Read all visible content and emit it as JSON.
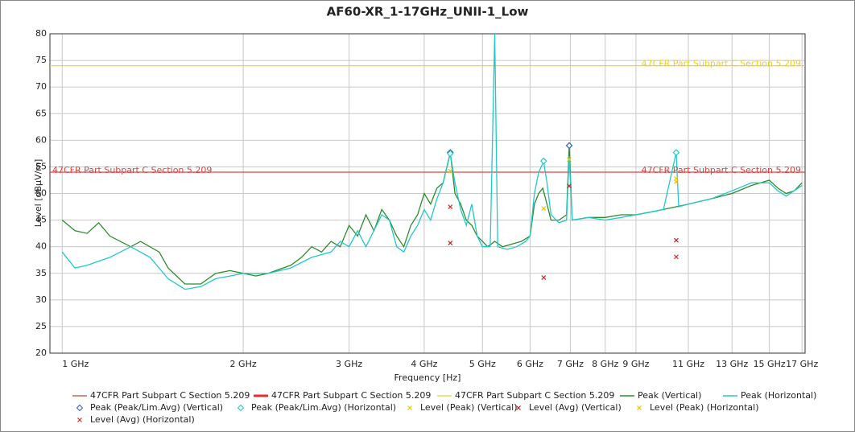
{
  "chart_data": {
    "type": "line",
    "title": "AF60-XR_1-17GHz_UNII-1_Low",
    "xlabel": "Frequency [Hz]",
    "ylabel": "Level [dBµV/m]",
    "xscale": "log",
    "grid": true,
    "xlim": [
      954000000.0,
      17200000000.0
    ],
    "xticks": [
      {
        "value": 1000000000.0,
        "label": "1 GHz"
      },
      {
        "value": 2000000000.0,
        "label": "2 GHz"
      },
      {
        "value": 3000000000.0,
        "label": "3 GHz"
      },
      {
        "value": 4000000000.0,
        "label": "4 GHz"
      },
      {
        "value": 5000000000.0,
        "label": "5 GHz"
      },
      {
        "value": 6000000000.0,
        "label": "6 GHz"
      },
      {
        "value": 7000000000.0,
        "label": "7 GHz"
      },
      {
        "value": 8000000000.0,
        "label": "8 GHz"
      },
      {
        "value": 9000000000.0,
        "label": "9 GHz"
      },
      {
        "value": 11000000000.0,
        "label": "11 GHz"
      },
      {
        "value": 13000000000.0,
        "label": "13 GHz"
      },
      {
        "value": 15000000000.0,
        "label": "15 GHz"
      },
      {
        "value": 17000000000.0,
        "label": "17 GHz"
      }
    ],
    "ylim": [
      20,
      80
    ],
    "yticks": [
      20,
      25,
      30,
      35,
      40,
      45,
      50,
      55,
      60,
      65,
      70,
      75,
      80
    ],
    "limits": [
      {
        "name": "47CFR Part Subpart C Section 5.209",
        "color": "#b04a30",
        "value": 54
      },
      {
        "name": "47CFR Part Subpart C Section 5.209",
        "color": "#e03030"
      },
      {
        "name": "47CFR Part Subpart C Section 5.209",
        "color": "#e8d020",
        "value": 74
      }
    ],
    "series": [
      {
        "name": "Peak (Vertical)",
        "color": "#2e8b2e",
        "kind": "line",
        "x": [
          1000000000.0,
          1050000000.0,
          1100000000.0,
          1150000000.0,
          1200000000.0,
          1300000000.0,
          1350000000.0,
          1450000000.0,
          1500000000.0,
          1600000000.0,
          1700000000.0,
          1800000000.0,
          1900000000.0,
          2000000000.0,
          2100000000.0,
          2200000000.0,
          2400000000.0,
          2500000000.0,
          2600000000.0,
          2700000000.0,
          2800000000.0,
          2900000000.0,
          3000000000.0,
          3100000000.0,
          3200000000.0,
          3300000000.0,
          3400000000.0,
          3500000000.0,
          3600000000.0,
          3700000000.0,
          3800000000.0,
          3900000000.0,
          4000000000.0,
          4100000000.0,
          4200000000.0,
          4300000000.0,
          4420000000.0,
          4500000000.0,
          4600000000.0,
          4700000000.0,
          4800000000.0,
          4900000000.0,
          5000000000.0,
          5100000000.0,
          5240000000.0,
          5400000000.0,
          5600000000.0,
          5800000000.0,
          6000000000.0,
          6100000000.0,
          6200000000.0,
          6300000000.0,
          6400000000.0,
          6500000000.0,
          6700000000.0,
          6900000000.0,
          6970000000.0,
          7050000000.0,
          7500000000.0,
          8000000000.0,
          8500000000.0,
          9000000000.0,
          9500000000.0,
          10000000000.0,
          10500000000.0,
          11000000000.0,
          12000000000.0,
          13000000000.0,
          14000000000.0,
          15000000000.0,
          15500000000.0,
          16000000000.0,
          16500000000.0,
          17000000000.0
        ],
        "values": [
          45,
          43,
          42.5,
          44.5,
          42,
          40,
          41,
          39,
          36,
          33,
          33,
          35,
          35.5,
          35,
          34.5,
          35,
          36.5,
          38,
          40,
          39,
          41,
          40,
          44,
          42,
          46,
          43,
          47,
          45,
          42,
          40,
          44,
          46,
          50,
          48,
          51,
          52,
          57.7,
          50,
          48,
          45,
          44,
          42,
          41,
          40,
          41,
          40,
          40.5,
          41,
          42,
          48,
          50,
          51,
          48,
          45,
          45,
          46,
          59,
          45,
          45.5,
          45.5,
          46,
          46,
          46.5,
          47,
          47.5,
          48,
          49,
          50,
          51.5,
          52.5,
          51,
          50,
          50.5,
          52
        ]
      },
      {
        "name": "Peak (Horizontal)",
        "color": "#22c8c8",
        "kind": "line",
        "x": [
          1000000000.0,
          1050000000.0,
          1100000000.0,
          1200000000.0,
          1300000000.0,
          1400000000.0,
          1500000000.0,
          1600000000.0,
          1700000000.0,
          1800000000.0,
          1900000000.0,
          2000000000.0,
          2200000000.0,
          2400000000.0,
          2600000000.0,
          2800000000.0,
          2900000000.0,
          3000000000.0,
          3100000000.0,
          3200000000.0,
          3400000000.0,
          3500000000.0,
          3600000000.0,
          3700000000.0,
          3800000000.0,
          3900000000.0,
          4000000000.0,
          4100000000.0,
          4200000000.0,
          4300000000.0,
          4420000000.0,
          4500000000.0,
          4600000000.0,
          4700000000.0,
          4800000000.0,
          4900000000.0,
          5000000000.0,
          5150000000.0,
          5240000000.0,
          5300000000.0,
          5500000000.0,
          5700000000.0,
          5900000000.0,
          6000000000.0,
          6100000000.0,
          6200000000.0,
          6320000000.0,
          6400000000.0,
          6500000000.0,
          6700000000.0,
          6900000000.0,
          6970000000.0,
          7050000000.0,
          7500000000.0,
          8000000000.0,
          8500000000.0,
          9000000000.0,
          9500000000.0,
          10000000000.0,
          10500000000.0,
          10600000000.0,
          11000000000.0,
          12000000000.0,
          13000000000.0,
          14000000000.0,
          15000000000.0,
          15500000000.0,
          16000000000.0,
          17000000000.0
        ],
        "values": [
          39,
          36,
          36.5,
          38,
          40,
          38,
          34,
          32,
          32.5,
          34,
          34.5,
          35,
          35,
          36,
          38,
          39,
          41,
          40,
          43,
          40,
          46,
          45,
          40,
          39,
          42,
          44,
          47,
          45,
          49,
          52,
          57.5,
          52,
          47,
          44,
          48,
          42,
          40,
          40,
          80,
          40,
          39.5,
          40,
          41,
          42,
          50,
          54,
          56,
          52,
          46,
          44.5,
          45,
          57,
          45,
          45.5,
          45,
          45.5,
          46,
          46.5,
          47,
          57.7,
          47.5,
          48,
          49,
          50.5,
          52,
          52,
          50.5,
          49.5,
          51.5
        ]
      },
      {
        "name": "Peak (Peak/Lim.Avg) (Vertical)",
        "color": "#3060c0",
        "kind": "marker",
        "marker": "diamond",
        "x": [
          4420000000.0,
          6970000000.0
        ],
        "values": [
          57.7,
          59.0
        ]
      },
      {
        "name": "Peak (Peak/Lim.Avg) (Horizontal)",
        "color": "#22c8c8",
        "kind": "marker",
        "marker": "diamond",
        "x": [
          4420000000.0,
          6320000000.0,
          10500000000.0
        ],
        "values": [
          57.5,
          56.1,
          57.7
        ]
      },
      {
        "name": "Level (Peak) (Vertical)",
        "color": "#e8c800",
        "kind": "marker",
        "marker": "x",
        "x": [
          4420000000.0,
          6970000000.0,
          10500000000.0
        ],
        "values": [
          54.2,
          56.4,
          52.8
        ]
      },
      {
        "name": "Level (Avg) (Vertical)",
        "color": "#c02020",
        "kind": "marker",
        "marker": "x",
        "x": [
          4420000000.0,
          6970000000.0,
          10500000000.0
        ],
        "values": [
          40.7,
          51.4,
          41.2
        ]
      },
      {
        "name": "Level (Peak) (Horizontal)",
        "color": "#f0c000",
        "kind": "marker",
        "marker": "x",
        "x": [
          6320000000.0,
          10500000000.0
        ],
        "values": [
          47.2,
          52.2
        ]
      },
      {
        "name": "Level (Avg) (Horizontal)",
        "color": "#d02828",
        "kind": "marker",
        "marker": "x",
        "x": [
          4420000000.0,
          6320000000.0,
          10500000000.0
        ],
        "values": [
          47.5,
          34.2,
          38.1
        ]
      }
    ]
  }
}
